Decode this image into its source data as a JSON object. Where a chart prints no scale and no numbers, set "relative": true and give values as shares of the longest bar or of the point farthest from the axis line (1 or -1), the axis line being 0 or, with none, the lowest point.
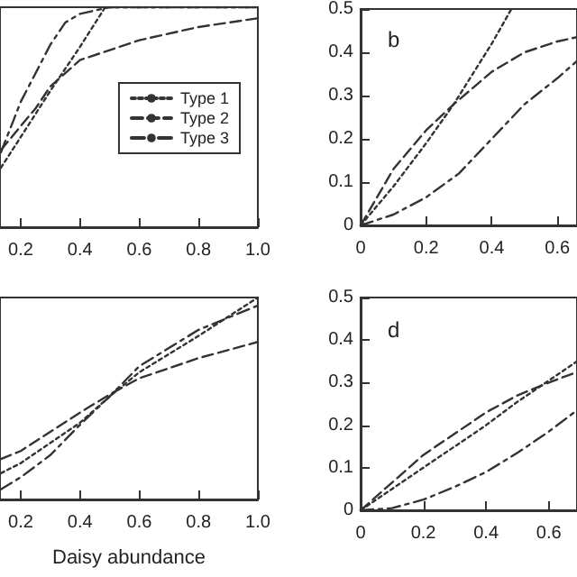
{
  "chart_data": [
    {
      "type": "line",
      "relative": true,
      "xlim": [
        0.13,
        1.0
      ],
      "xticks": [
        0.2,
        0.4,
        0.6,
        0.8,
        {
          "value": 1.0,
          "label": "1.0"
        }
      ],
      "tick_labels": "x",
      "legend": "right",
      "grid": false,
      "marker": "none",
      "series": [
        {
          "name": "Type 1",
          "color": "#333333",
          "line_style": "dotted",
          "x": [
            0.133,
            0.2,
            0.3,
            0.4,
            0.485,
            0.6,
            0.8,
            1.0
          ],
          "values": [
            0.27,
            0.41,
            0.62,
            0.82,
            1,
            1,
            1,
            1
          ]
        },
        {
          "name": "Type 2",
          "color": "#333333",
          "line_style": "dashed",
          "x": [
            0.133,
            0.2,
            0.25,
            0.3,
            0.4,
            0.6,
            0.8,
            1.0
          ],
          "values": [
            0.35,
            0.46,
            0.54,
            0.64,
            0.76,
            0.85,
            0.91,
            0.95
          ]
        },
        {
          "name": "Type 3",
          "color": "#333333",
          "line_style": "dashdot",
          "x": [
            0.133,
            0.2,
            0.25,
            0.3,
            0.35,
            0.4,
            0.5,
            0.6,
            0.8,
            1.0
          ],
          "values": [
            0.34,
            0.57,
            0.7,
            0.83,
            0.93,
            0.97,
            1,
            1,
            1,
            1
          ]
        }
      ]
    },
    {
      "type": "line",
      "xlim": [
        0,
        0.66
      ],
      "xticks": [
        0,
        0.2,
        0.4,
        0.6
      ],
      "ylim": [
        0,
        0.5
      ],
      "yticks": [
        0,
        0.1,
        0.2,
        0.3,
        0.4,
        0.5
      ],
      "grid": false,
      "legend": false,
      "marker": "none",
      "annotations": [
        "b"
      ],
      "series": [
        {
          "color": "#333333",
          "line_style": "dotted",
          "x": [
            0,
            0.1,
            0.2,
            0.284,
            0.4,
            0.46
          ],
          "values": [
            0,
            0.09,
            0.19,
            0.28,
            0.42,
            0.5
          ]
        },
        {
          "color": "#333333",
          "line_style": "dashed",
          "x": [
            0,
            0.1,
            0.2,
            0.284,
            0.4,
            0.5,
            0.6,
            0.66
          ],
          "values": [
            0,
            0.13,
            0.22,
            0.28,
            0.355,
            0.4,
            0.425,
            0.435
          ]
        },
        {
          "color": "#333333",
          "line_style": "dashdot",
          "x": [
            0,
            0.1,
            0.2,
            0.3,
            0.4,
            0.5,
            0.6,
            0.66
          ],
          "values": [
            0,
            0.025,
            0.065,
            0.12,
            0.2,
            0.28,
            0.34,
            0.38
          ]
        }
      ]
    },
    {
      "type": "line",
      "relative": true,
      "xlim": [
        0.13,
        1.0
      ],
      "xticks": [
        0.2,
        0.4,
        0.6,
        0.8,
        {
          "value": 1.0,
          "label": "1.0"
        }
      ],
      "tick_labels": "x",
      "xlabel": "Daisy abundance",
      "grid": false,
      "legend": false,
      "marker": "none",
      "series": [
        {
          "color": "#333333",
          "line_style": "dotted",
          "x": [
            0.133,
            0.2,
            0.4,
            0.5,
            0.6,
            0.8,
            1.0
          ],
          "values": [
            0.13,
            0.18,
            0.38,
            0.51,
            0.63,
            0.81,
            1
          ]
        },
        {
          "color": "#333333",
          "line_style": "dashed",
          "x": [
            0.133,
            0.2,
            0.4,
            0.5,
            0.6,
            0.8,
            1.0
          ],
          "values": [
            0.2,
            0.24,
            0.43,
            0.52,
            0.6,
            0.7,
            0.78
          ]
        },
        {
          "color": "#333333",
          "line_style": "dashdot",
          "x": [
            0.133,
            0.2,
            0.3,
            0.4,
            0.5,
            0.6,
            0.8,
            0.9,
            1.0
          ],
          "values": [
            0.05,
            0.11,
            0.22,
            0.37,
            0.51,
            0.66,
            0.84,
            0.9,
            0.96
          ]
        }
      ]
    },
    {
      "type": "line",
      "xlim": [
        0,
        0.69
      ],
      "xticks": [
        0,
        0.2,
        0.4,
        0.6
      ],
      "ylim": [
        0,
        0.5
      ],
      "yticks": [
        0,
        0.1,
        0.2,
        0.3,
        0.4,
        0.5
      ],
      "grid": false,
      "legend": false,
      "marker": "none",
      "annotations": [
        "d"
      ],
      "series": [
        {
          "color": "#333333",
          "line_style": "dotted",
          "x": [
            0,
            0.1,
            0.2,
            0.3,
            0.4,
            0.5,
            0.6,
            0.69
          ],
          "values": [
            0,
            0.05,
            0.1,
            0.15,
            0.2,
            0.255,
            0.305,
            0.35
          ]
        },
        {
          "color": "#333333",
          "line_style": "dashed",
          "x": [
            0,
            0.1,
            0.2,
            0.3,
            0.4,
            0.5,
            0.6,
            0.69
          ],
          "values": [
            0,
            0.065,
            0.13,
            0.18,
            0.23,
            0.27,
            0.3,
            0.325
          ]
        },
        {
          "color": "#333333",
          "line_style": "dashdot",
          "x": [
            0,
            0.1,
            0.2,
            0.3,
            0.4,
            0.5,
            0.6,
            0.69
          ],
          "values": [
            0,
            0.005,
            0.025,
            0.055,
            0.09,
            0.135,
            0.185,
            0.235
          ]
        }
      ]
    }
  ]
}
